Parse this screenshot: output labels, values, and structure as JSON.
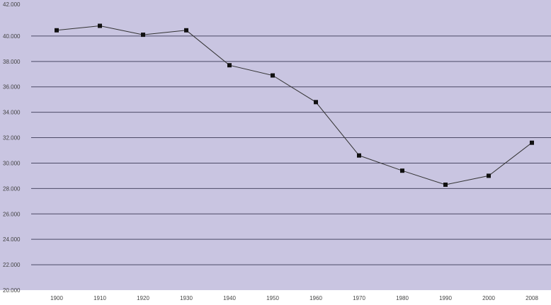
{
  "chart_data": {
    "type": "line",
    "title": "",
    "xlabel": "",
    "ylabel": "",
    "categories": [
      "1900",
      "1910",
      "1920",
      "1930",
      "1940",
      "1950",
      "1960",
      "1970",
      "1980",
      "1990",
      "2000",
      "2008"
    ],
    "y_tick_labels": [
      "42.000",
      "40.000",
      "38.000",
      "36.000",
      "34.000",
      "32.000",
      "30.000",
      "28.000",
      "26.000",
      "24.000",
      "22.000",
      "20.000"
    ],
    "ylim": [
      20000,
      42000
    ],
    "y_ticks": [
      42000,
      40000,
      38000,
      36000,
      34000,
      32000,
      30000,
      28000,
      26000,
      24000,
      22000,
      20000
    ],
    "series": [
      {
        "values": [
          40450,
          40800,
          40100,
          40450,
          37700,
          36900,
          34800,
          30600,
          29400,
          28300,
          29000,
          31600
        ]
      }
    ],
    "legend": "none",
    "grid": true,
    "colors": {
      "plot_background": "#c9c5e1",
      "gridline": "#4c4a66",
      "line": "#333333",
      "marker": "#111111",
      "label": "#444444"
    }
  }
}
